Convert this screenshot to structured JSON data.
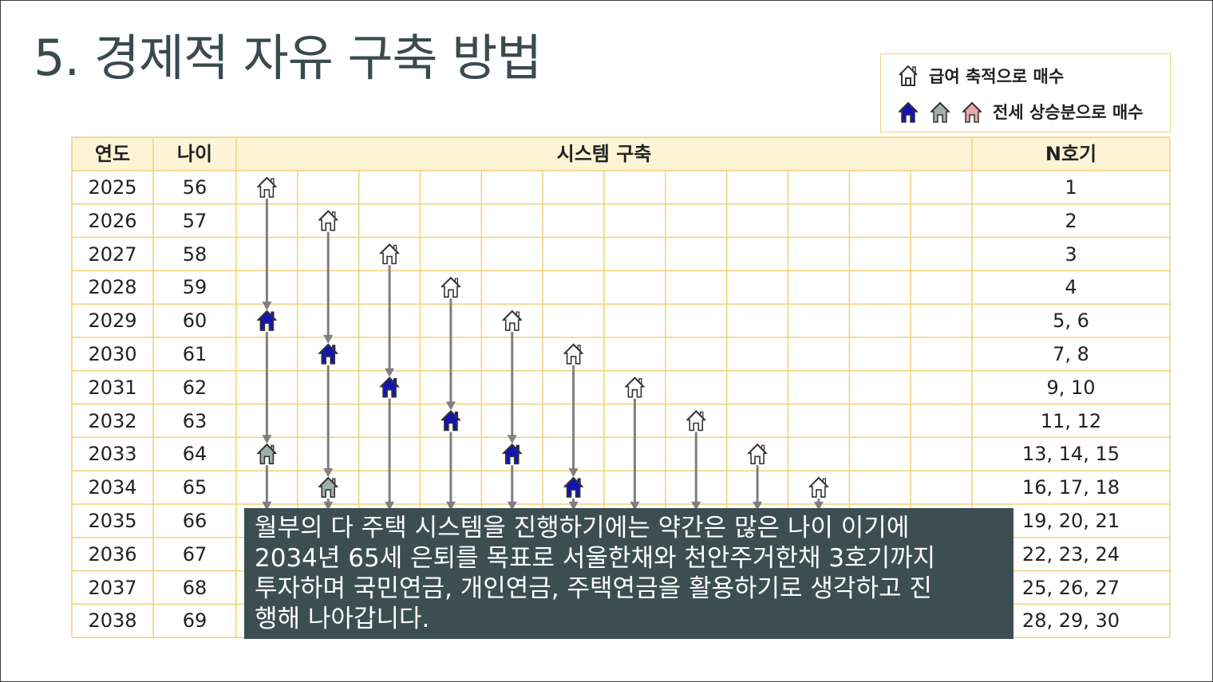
{
  "title": "5. 경제적 자유 구축 방법",
  "legend": {
    "item1": "급여 축적으로 매수",
    "item2": "전세 상승분으로 매수",
    "icons1": [
      "house-outline-icon"
    ],
    "icons2": [
      "house-blue-icon",
      "house-gray-icon",
      "house-pink-icon"
    ]
  },
  "table": {
    "headers": {
      "year": "연도",
      "age": "나이",
      "system": "시스템 구축",
      "count": "N호기"
    },
    "rows": [
      {
        "year": "2025",
        "age": "56",
        "count": "1"
      },
      {
        "year": "2026",
        "age": "57",
        "count": "2"
      },
      {
        "year": "2027",
        "age": "58",
        "count": "3"
      },
      {
        "year": "2028",
        "age": "59",
        "count": "4"
      },
      {
        "year": "2029",
        "age": "60",
        "count": "5, 6"
      },
      {
        "year": "2030",
        "age": "61",
        "count": "7, 8"
      },
      {
        "year": "2031",
        "age": "62",
        "count": "9, 10"
      },
      {
        "year": "2032",
        "age": "63",
        "count": "11, 12"
      },
      {
        "year": "2033",
        "age": "64",
        "count": "13, 14, 15"
      },
      {
        "year": "2034",
        "age": "65",
        "count": "16, 17, 18"
      },
      {
        "year": "2035",
        "age": "66",
        "count": "19, 20, 21"
      },
      {
        "year": "2036",
        "age": "67",
        "count": "22, 23, 24"
      },
      {
        "year": "2037",
        "age": "68",
        "count": "25, 26, 27"
      },
      {
        "year": "2038",
        "age": "69",
        "count": "28, 29, 30"
      }
    ]
  },
  "houses": [
    {
      "col": 0,
      "row": 0,
      "kind": "outline"
    },
    {
      "col": 1,
      "row": 1,
      "kind": "outline"
    },
    {
      "col": 2,
      "row": 2,
      "kind": "outline"
    },
    {
      "col": 3,
      "row": 3,
      "kind": "outline"
    },
    {
      "col": 0,
      "row": 4,
      "kind": "blue"
    },
    {
      "col": 4,
      "row": 4,
      "kind": "outline"
    },
    {
      "col": 1,
      "row": 5,
      "kind": "blue"
    },
    {
      "col": 5,
      "row": 5,
      "kind": "outline"
    },
    {
      "col": 2,
      "row": 6,
      "kind": "blue"
    },
    {
      "col": 6,
      "row": 6,
      "kind": "outline"
    },
    {
      "col": 3,
      "row": 7,
      "kind": "blue"
    },
    {
      "col": 7,
      "row": 7,
      "kind": "outline"
    },
    {
      "col": 0,
      "row": 8,
      "kind": "gray"
    },
    {
      "col": 4,
      "row": 8,
      "kind": "blue"
    },
    {
      "col": 8,
      "row": 8,
      "kind": "outline"
    },
    {
      "col": 1,
      "row": 9,
      "kind": "gray"
    },
    {
      "col": 5,
      "row": 9,
      "kind": "blue"
    },
    {
      "col": 9,
      "row": 9,
      "kind": "outline"
    }
  ],
  "arrows": [
    {
      "col": 0,
      "from_row": 0,
      "to_row": 4
    },
    {
      "col": 0,
      "from_row": 4,
      "to_row": 8
    },
    {
      "col": 0,
      "from_row": 8,
      "to_row": 10
    },
    {
      "col": 1,
      "from_row": 1,
      "to_row": 5
    },
    {
      "col": 1,
      "from_row": 5,
      "to_row": 9
    },
    {
      "col": 1,
      "from_row": 9,
      "to_row": 10
    },
    {
      "col": 2,
      "from_row": 2,
      "to_row": 6
    },
    {
      "col": 2,
      "from_row": 6,
      "to_row": 10
    },
    {
      "col": 3,
      "from_row": 3,
      "to_row": 7
    },
    {
      "col": 3,
      "from_row": 7,
      "to_row": 10
    },
    {
      "col": 4,
      "from_row": 4,
      "to_row": 8
    },
    {
      "col": 4,
      "from_row": 8,
      "to_row": 10
    },
    {
      "col": 5,
      "from_row": 5,
      "to_row": 9
    },
    {
      "col": 5,
      "from_row": 9,
      "to_row": 10
    },
    {
      "col": 6,
      "from_row": 6,
      "to_row": 10
    },
    {
      "col": 7,
      "from_row": 7,
      "to_row": 10
    },
    {
      "col": 8,
      "from_row": 8,
      "to_row": 10
    },
    {
      "col": 9,
      "from_row": 9,
      "to_row": 10
    }
  ],
  "colors": {
    "grid": "#f1d27a",
    "header_bg": "#fdf4d6",
    "house_blue": "#1414b4",
    "house_gray": "#9fb0ad",
    "house_pink": "#e8a9a6",
    "arrow": "#7f7f7f",
    "overlay_bg": "#3c4e52",
    "title": "#3b4a4d"
  },
  "overlay": {
    "line1": "월부의 다 주택 시스템을 진행하기에는 약간은 많은 나이 이기에",
    "line2": "2034년 65세 은퇴를 목표로 서울한채와 천안주거한채 3호기까지",
    "line3": "투자하며 국민연금, 개인연금, 주택연금을 활용하기로 생각하고 진",
    "line4": "행해 나아갑니다."
  }
}
